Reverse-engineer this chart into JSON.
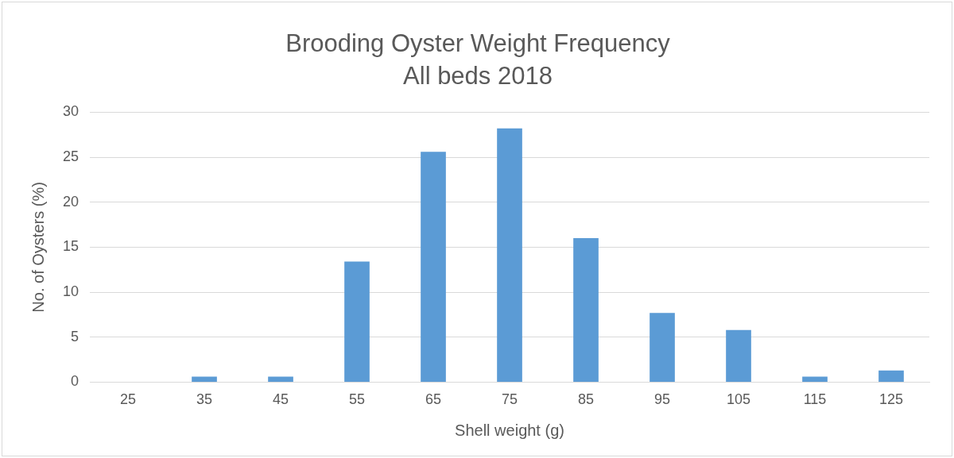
{
  "chart_data": {
    "type": "bar",
    "title": "Brooding Oyster Weight Frequency",
    "subtitle": "All beds 2018",
    "xlabel": "Shell weight (g)",
    "ylabel": "No. of Oysters (%)",
    "categories": [
      "25",
      "35",
      "45",
      "55",
      "65",
      "75",
      "85",
      "95",
      "105",
      "115",
      "125"
    ],
    "values": [
      0,
      0.6,
      0.6,
      13.4,
      25.6,
      28.2,
      16.0,
      7.7,
      5.8,
      0.6,
      1.3
    ],
    "color": "#5b9bd5",
    "ylim": [
      0,
      30
    ],
    "yticks": [
      0,
      5,
      10,
      15,
      20,
      25,
      30
    ],
    "grid": "y",
    "legend": false
  }
}
